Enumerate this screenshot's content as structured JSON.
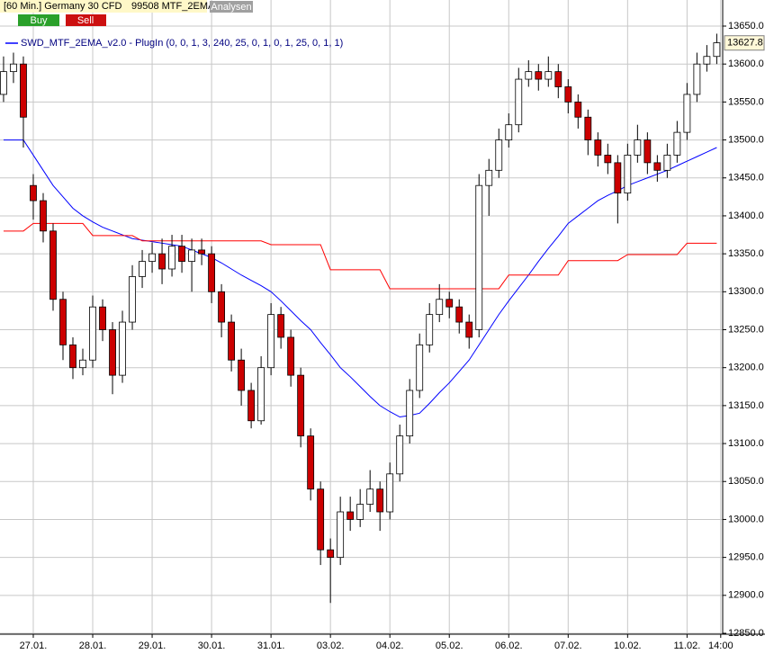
{
  "header": {
    "instrument": "[60 Min.] Germany 30 CFD",
    "study": "99508 MTF_2EMA",
    "analysis_button": "Analysen",
    "buy_button": "Buy",
    "sell_button": "Sell"
  },
  "chart_data": {
    "type": "candlestick",
    "x": [
      0,
      1,
      2,
      3,
      4,
      5,
      6,
      7,
      8,
      9,
      10,
      11,
      12,
      13,
      14,
      15,
      16,
      17,
      18,
      19,
      20,
      21,
      22,
      23,
      24,
      25,
      26,
      27,
      28,
      29,
      30,
      31,
      32,
      33,
      34,
      35,
      36,
      37,
      38,
      39,
      40,
      41,
      42,
      43,
      44,
      45,
      46,
      47,
      48,
      49,
      50,
      51,
      52,
      53,
      54,
      55,
      56,
      57,
      58,
      59,
      60,
      61,
      62,
      63,
      64,
      65,
      66,
      67,
      68,
      69,
      70,
      71,
      72
    ],
    "open": [
      13560,
      13590,
      13600,
      13440,
      13420,
      13380,
      13290,
      13230,
      13200,
      13210,
      13280,
      13250,
      13190,
      13260,
      13320,
      13340,
      13350,
      13330,
      13360,
      13340,
      13355,
      13350,
      13300,
      13260,
      13210,
      13170,
      13130,
      13200,
      13270,
      13240,
      13190,
      13110,
      13040,
      12960,
      12950,
      13010,
      13000,
      13020,
      13040,
      13010,
      13060,
      13110,
      13170,
      13230,
      13270,
      13290,
      13280,
      13260,
      13250,
      13440,
      13460,
      13500,
      13520,
      13580,
      13590,
      13580,
      13590,
      13570,
      13550,
      13530,
      13500,
      13480,
      13470,
      13430,
      13480,
      13500,
      13470,
      13460,
      13480,
      13510,
      13560,
      13600,
      13610
    ],
    "high": [
      13610,
      13615,
      13610,
      13455,
      13430,
      13390,
      13300,
      13240,
      13225,
      13295,
      13290,
      13260,
      13275,
      13335,
      13355,
      13365,
      13370,
      13375,
      13375,
      13370,
      13370,
      13360,
      13310,
      13270,
      13225,
      13180,
      13215,
      13285,
      13280,
      13250,
      13200,
      13120,
      13050,
      12975,
      13030,
      13030,
      13040,
      13065,
      13050,
      13075,
      13125,
      13185,
      13245,
      13285,
      13310,
      13300,
      13290,
      13270,
      13455,
      13475,
      13515,
      13535,
      13595,
      13605,
      13600,
      13610,
      13600,
      13580,
      13560,
      13540,
      13510,
      13495,
      13480,
      13495,
      13520,
      13510,
      13480,
      13495,
      13525,
      13575,
      13615,
      13625,
      13640
    ],
    "low": [
      13550,
      13575,
      13490,
      13395,
      13365,
      13275,
      13210,
      13185,
      13190,
      13200,
      13235,
      13165,
      13180,
      13250,
      13305,
      13325,
      13310,
      13320,
      13325,
      13300,
      13335,
      13285,
      13240,
      13195,
      13150,
      13120,
      13125,
      13190,
      13225,
      13175,
      13095,
      13025,
      12940,
      12890,
      12940,
      12985,
      12990,
      13010,
      12985,
      13000,
      13050,
      13100,
      13160,
      13220,
      13260,
      13265,
      13245,
      13225,
      13240,
      13400,
      13450,
      13490,
      13510,
      13570,
      13565,
      13570,
      13555,
      13535,
      13515,
      13480,
      13465,
      13455,
      13390,
      13420,
      13470,
      13455,
      13445,
      13450,
      13470,
      13500,
      13550,
      13590,
      13600
    ],
    "close": [
      13590,
      13600,
      13530,
      13420,
      13380,
      13290,
      13230,
      13200,
      13210,
      13280,
      13250,
      13190,
      13260,
      13320,
      13340,
      13350,
      13330,
      13360,
      13340,
      13355,
      13350,
      13300,
      13260,
      13210,
      13170,
      13130,
      13200,
      13270,
      13240,
      13190,
      13110,
      13040,
      12960,
      12950,
      13010,
      13000,
      13020,
      13040,
      13010,
      13060,
      13110,
      13170,
      13230,
      13270,
      13290,
      13280,
      13260,
      13240,
      13440,
      13460,
      13500,
      13520,
      13580,
      13590,
      13580,
      13590,
      13570,
      13550,
      13530,
      13500,
      13480,
      13470,
      13430,
      13480,
      13500,
      13470,
      13460,
      13480,
      13510,
      13560,
      13600,
      13610,
      13628
    ],
    "up_color": "#ffffff",
    "down_color": "#cc0000",
    "series": [
      {
        "name": "SWD_MTF_2EMA_v2.0 - PlugIn  (0, 0, 1, 3, 240, 25, 0, 1, 0, 1, 25, 0, 1, 1)",
        "color": "#0000ff",
        "values": [
          13500,
          13500,
          13500,
          13480,
          13460,
          13440,
          13425,
          13410,
          13400,
          13392,
          13385,
          13380,
          13375,
          13370,
          13368,
          13366,
          13364,
          13362,
          13360,
          13355,
          13350,
          13345,
          13338,
          13330,
          13322,
          13315,
          13308,
          13300,
          13288,
          13275,
          13262,
          13250,
          13233,
          13217,
          13200,
          13188,
          13175,
          13162,
          13150,
          13142,
          13135,
          13137,
          13140,
          13153,
          13167,
          13180,
          13195,
          13210,
          13230,
          13250,
          13270,
          13288,
          13305,
          13322,
          13340,
          13357,
          13373,
          13390,
          13400,
          13410,
          13420,
          13427,
          13433,
          13440,
          13445,
          13450,
          13455,
          13460,
          13466,
          13472,
          13478,
          13484,
          13490
        ]
      },
      {
        "color": "#ff0000",
        "values": [
          13380,
          13380,
          13380,
          13390,
          13390,
          13390,
          13390,
          13390,
          13390,
          13374,
          13374,
          13374,
          13374,
          13374,
          13367,
          13367,
          13367,
          13367,
          13367,
          13367,
          13367,
          13367,
          13367,
          13367,
          13367,
          13367,
          13367,
          13362,
          13362,
          13362,
          13362,
          13362,
          13362,
          13329,
          13329,
          13329,
          13329,
          13329,
          13329,
          13304,
          13304,
          13304,
          13304,
          13304,
          13304,
          13304,
          13304,
          13304,
          13304,
          13304,
          13304,
          13322,
          13322,
          13322,
          13322,
          13322,
          13322,
          13341,
          13341,
          13341,
          13341,
          13341,
          13341,
          13349,
          13349,
          13349,
          13349,
          13349,
          13349,
          13364,
          13364,
          13364,
          13364
        ]
      }
    ],
    "xlim": [
      -0.36,
      72.6
    ],
    "xticks": [
      {
        "value": 3,
        "label": "27.01."
      },
      {
        "value": 9,
        "label": "28.01."
      },
      {
        "value": 15,
        "label": "29.01."
      },
      {
        "value": 21,
        "label": "30.01."
      },
      {
        "value": 27,
        "label": "31.01."
      },
      {
        "value": 33,
        "label": "03.02."
      },
      {
        "value": 39,
        "label": "04.02."
      },
      {
        "value": 45,
        "label": "05.02."
      },
      {
        "value": 51,
        "label": "06.02."
      },
      {
        "value": 57,
        "label": "07.02."
      },
      {
        "value": 63,
        "label": "10.02."
      },
      {
        "value": 69,
        "label": "11.02."
      },
      {
        "value": 72.4,
        "label": "14:00"
      }
    ],
    "ylim": [
      12850,
      13650
    ],
    "yticks": [
      {
        "value": 12850,
        "label": "12850.0"
      },
      {
        "value": 12900,
        "label": "12900.0"
      },
      {
        "value": 12950,
        "label": "12950.0"
      },
      {
        "value": 13000,
        "label": "13000.0"
      },
      {
        "value": 13050,
        "label": "13050.0"
      },
      {
        "value": 13100,
        "label": "13100.0"
      },
      {
        "value": 13150,
        "label": "13150.0"
      },
      {
        "value": 13200,
        "label": "13200.0"
      },
      {
        "value": 13250,
        "label": "13250.0"
      },
      {
        "value": 13300,
        "label": "13300.0"
      },
      {
        "value": 13350,
        "label": "13350.0"
      },
      {
        "value": 13400,
        "label": "13400.0"
      },
      {
        "value": 13450,
        "label": "13450.0"
      },
      {
        "value": 13500,
        "label": "13500.0"
      },
      {
        "value": 13550,
        "label": "13550.0"
      },
      {
        "value": 13600,
        "label": "13600.0"
      },
      {
        "value": 13650,
        "label": "13650.0"
      }
    ],
    "last_price": 13627.8,
    "grid": true
  }
}
